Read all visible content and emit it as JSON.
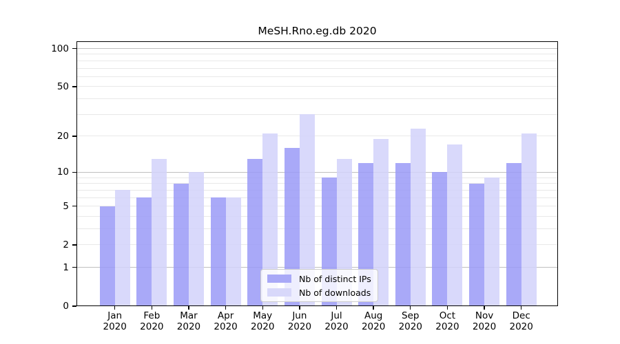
{
  "title": "MeSH.Rno.eg.db 2020",
  "chart_data": {
    "type": "bar",
    "title": "MeSH.Rno.eg.db 2020",
    "categories": [
      "Jan",
      "Feb",
      "Mar",
      "Apr",
      "May",
      "Jun",
      "Jul",
      "Aug",
      "Sep",
      "Oct",
      "Nov",
      "Dec"
    ],
    "x_year_label": "2020",
    "series": [
      {
        "name": "Nb of distinct IPs",
        "slug": "distinct-ips",
        "fill": "rgba(154,154,247,0.85)",
        "legend_color": "#a9a9f7",
        "values": [
          5,
          6,
          8,
          6,
          13,
          16,
          9,
          12,
          12,
          10,
          8,
          12
        ]
      },
      {
        "name": "Nb of downloads",
        "slug": "downloads",
        "fill": "rgba(210,210,250,0.85)",
        "legend_color": "#d8d8fa",
        "values": [
          7,
          13,
          10,
          6,
          21,
          30,
          13,
          19,
          23,
          17,
          9,
          21
        ]
      }
    ],
    "y_axis": {
      "scale": "log10(1+x)",
      "range": [
        0,
        100
      ],
      "labeled_ticks": [
        100,
        50,
        20,
        10,
        5,
        2,
        1,
        0
      ],
      "grid_major": [
        1,
        10,
        100
      ],
      "grid_minor": [
        2,
        3,
        4,
        5,
        6,
        7,
        8,
        9,
        20,
        30,
        40,
        50,
        60,
        70,
        80,
        90
      ]
    },
    "legend": {
      "position": "bottom-center"
    },
    "grid": true
  },
  "colors": {
    "grid_major": "#bfbfbf",
    "grid_minor": "#e8e8e8",
    "axis": "#000000",
    "bar_distinct_ips": "#a9a9f7",
    "bar_downloads": "#d8d8fa",
    "legend_border": "#cccccc"
  }
}
